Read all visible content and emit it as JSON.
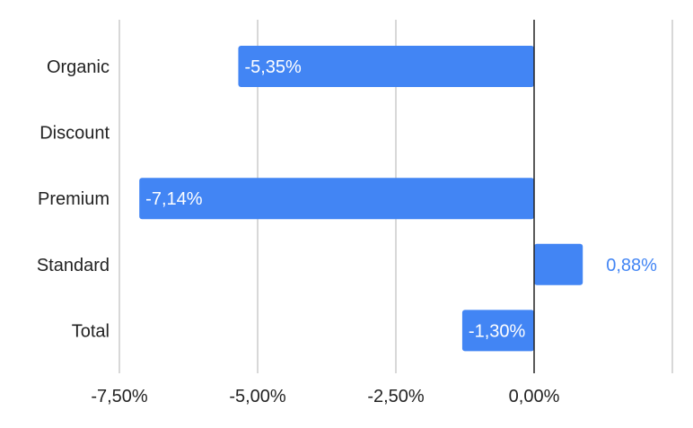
{
  "chart_data": {
    "type": "bar",
    "orientation": "horizontal",
    "categories": [
      "Organic",
      "Discount",
      "Premium",
      "Standard",
      "Total"
    ],
    "series": [
      {
        "values": [
          -5.35,
          null,
          -7.14,
          0.88,
          -1.3
        ],
        "labels": [
          "-5,35%",
          "",
          "-7,14%",
          "0,88%",
          "-1,30%"
        ],
        "color": "#4285f4"
      }
    ],
    "xlim": [
      -7.5,
      2.5
    ],
    "xticks": [
      -7.5,
      -5.0,
      -2.5,
      0.0
    ],
    "xtick_labels": [
      "-7,50%",
      "-5,00%",
      "-2,50%",
      "0,00%"
    ],
    "grid": true,
    "legend": "none",
    "colors": {
      "bar": "#4285f4",
      "inside_label": "#ffffff",
      "outside_label": "#4285f4",
      "grid": "#cccccc",
      "zero_line": "#222222"
    }
  }
}
